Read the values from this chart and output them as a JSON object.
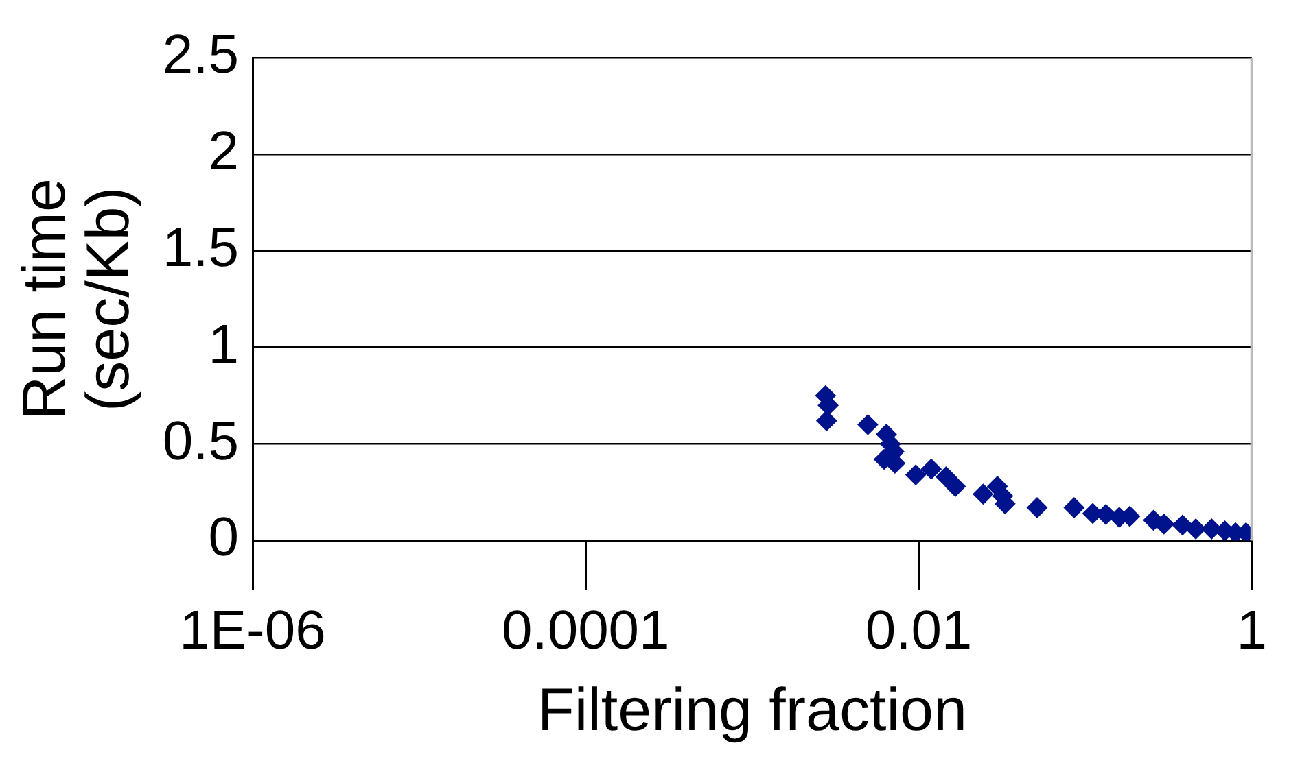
{
  "chart_data": {
    "type": "scatter",
    "xlabel": "Filtering fraction",
    "ylabel": "Run time (sec/Kb)",
    "log": "x",
    "grid": "y",
    "marker": "diamond",
    "xlim": [
      1e-06,
      1
    ],
    "xticks": [
      {
        "value": 1e-06,
        "label": "1E-06"
      },
      0.0001,
      0.01,
      1
    ],
    "ylim": [
      0,
      2.5
    ],
    "yticks": [
      0,
      0.5,
      1,
      1.5,
      2,
      2.5
    ],
    "series": [
      {
        "color": "#00128c",
        "x": [
          0.00276,
          0.00286,
          0.0028,
          0.00495,
          0.0064,
          0.00675,
          0.0071,
          0.0062,
          0.0072,
          0.0096,
          0.0119,
          0.0146,
          0.0166,
          0.0244,
          0.0297,
          0.032,
          0.033,
          0.0514,
          0.0857,
          0.111,
          0.133,
          0.16,
          0.185,
          0.257,
          0.297,
          0.384,
          0.461,
          0.574,
          0.689,
          0.798,
          0.923
        ],
        "values": [
          0.75,
          0.7,
          0.62,
          0.6,
          0.55,
          0.5,
          0.46,
          0.42,
          0.4,
          0.34,
          0.37,
          0.33,
          0.28,
          0.24,
          0.28,
          0.23,
          0.19,
          0.17,
          0.17,
          0.14,
          0.135,
          0.12,
          0.125,
          0.105,
          0.085,
          0.08,
          0.06,
          0.06,
          0.05,
          0.04,
          0.04
        ]
      }
    ]
  }
}
